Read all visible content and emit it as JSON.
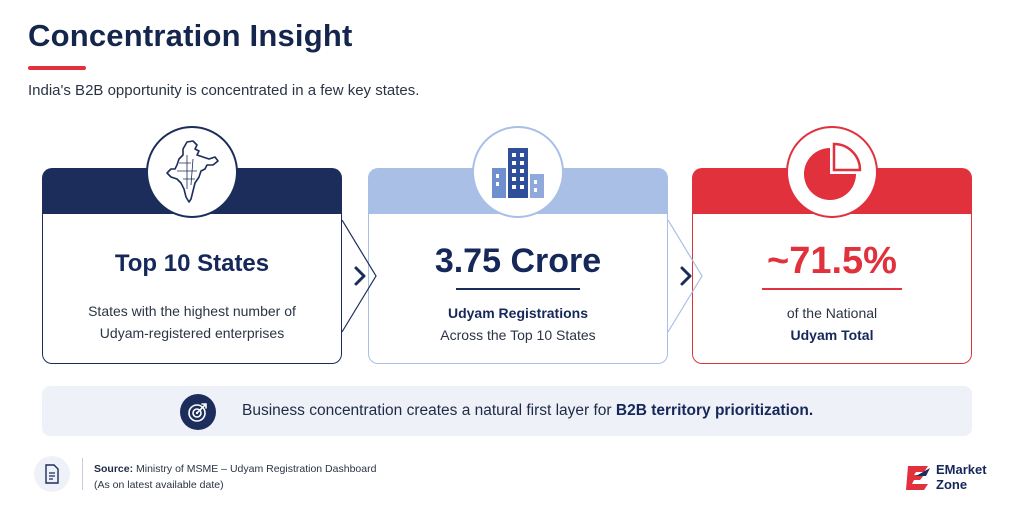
{
  "header": {
    "title": "Concentration Insight",
    "subtitle": "India's B2B opportunity is concentrated in a few key states."
  },
  "cards": [
    {
      "icon": "india-map-icon",
      "headline": "Top 10 States",
      "line1": "States with the highest number of",
      "line2": "Udyam-registered enterprises",
      "accent": "#1c2d5c"
    },
    {
      "icon": "buildings-icon",
      "headline": "3.75 Crore",
      "line1": "Udyam Registrations",
      "line2": "Across the Top 10 States",
      "accent": "#a9bfe6"
    },
    {
      "icon": "pie-chart-icon",
      "headline": "~71.5%",
      "line1": "of the National",
      "line2": "Udyam Total",
      "accent": "#e0313c"
    }
  ],
  "banner": {
    "icon": "target-icon",
    "text_plain": "Business concentration creates a natural first layer for ",
    "text_bold": "B2B territory prioritization."
  },
  "source": {
    "icon": "document-icon",
    "label": "Source:",
    "text": " Ministry of MSME – Udyam Registration Dashboard",
    "note": "(As on latest available date)"
  },
  "logo": {
    "line1": "EMarket",
    "line2": "Zone",
    "color": "#e0313c"
  }
}
